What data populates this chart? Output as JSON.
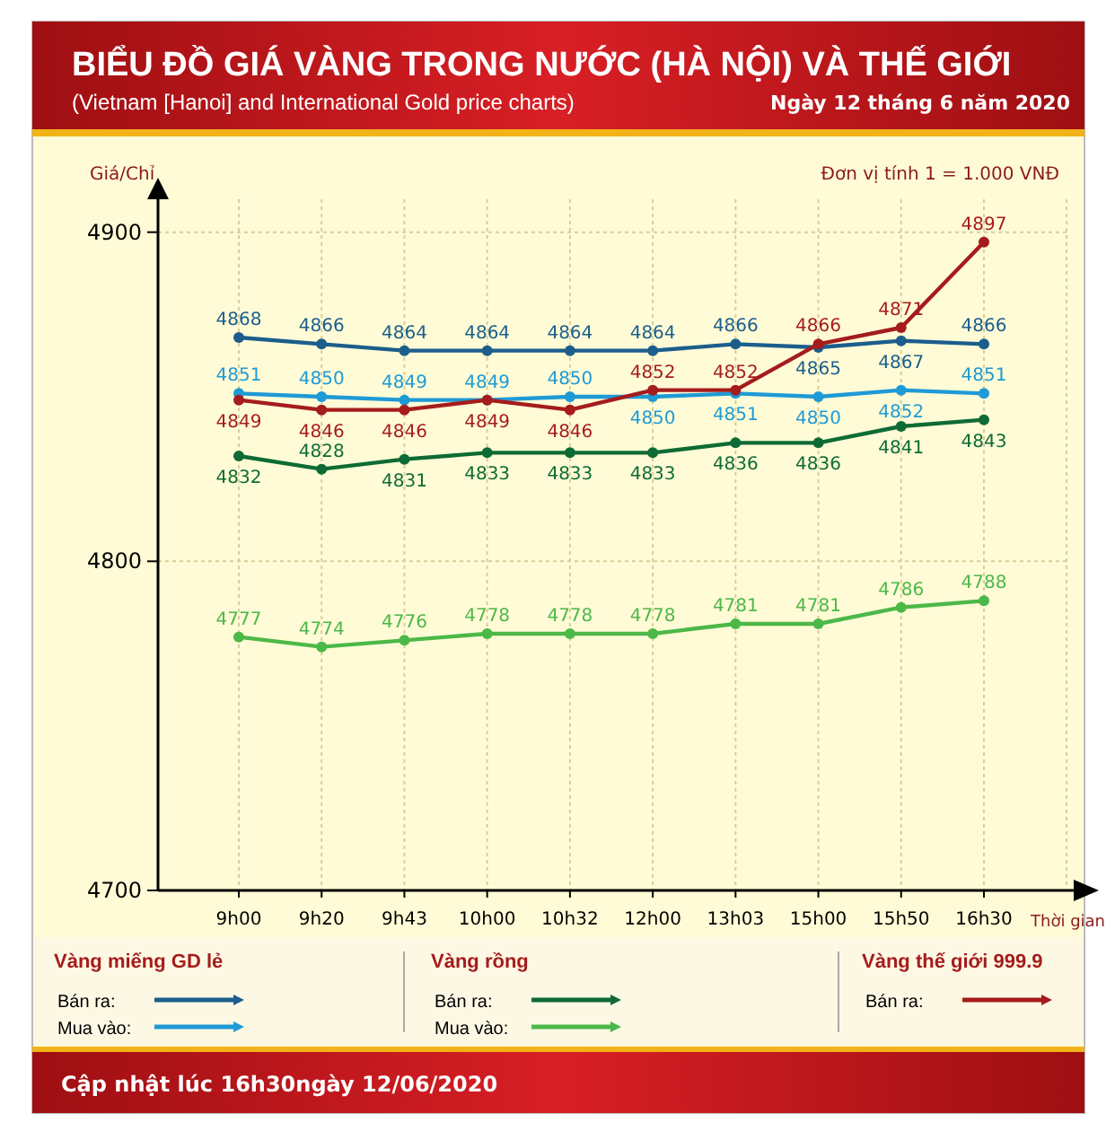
{
  "chart_data": {
    "type": "line",
    "title": "BIỂU ĐỒ GIÁ VÀNG TRONG NƯỚC (HÀ NỘI) VÀ THẾ GIỚI",
    "subtitle": "(Vietnam [Hanoi] and International Gold price charts)",
    "xlabel": "Thời gian",
    "ylabel": "Giá/Chỉ",
    "categories": [
      "9h00",
      "9h20",
      "9h43",
      "10h00",
      "10h32",
      "12h00",
      "13h03",
      "15h00",
      "15h50",
      "16h30"
    ],
    "series": [
      {
        "name": "Bán ra:",
        "color": "#1b5e8c",
        "values": [
          4868,
          4866,
          4864,
          4864,
          4864,
          4864,
          4866,
          4865,
          4867,
          4866
        ]
      },
      {
        "name": "Mua vào:",
        "color": "#1e9ad6",
        "values": [
          4851,
          4850,
          4849,
          4849,
          4850,
          4850,
          4851,
          4850,
          4852,
          4851
        ]
      },
      {
        "name": "Bán ra:",
        "color": "#0e6b35",
        "values": [
          4832,
          4828,
          4831,
          4833,
          4833,
          4833,
          4836,
          4836,
          4841,
          4843
        ]
      },
      {
        "name": "Mua vào:",
        "color": "#4cb848",
        "values": [
          4777,
          4774,
          4776,
          4778,
          4778,
          4778,
          4781,
          4781,
          4786,
          4788
        ]
      },
      {
        "name": "Bán ra:",
        "color": "#a51c1c",
        "values": [
          4849,
          4846,
          4846,
          4849,
          4846,
          4852,
          4852,
          4866,
          4871,
          4897
        ]
      }
    ],
    "ylim": [
      4700,
      4910
    ],
    "yticks": [
      4700,
      4800,
      4900
    ],
    "grid": true,
    "marker": "circle",
    "data_labels": true,
    "legend": "bottom",
    "annotations": [
      "Vàng miếng GD lẻ",
      "Vàng rồng",
      "Vàng thế giới 999.9",
      "Đơn vị tính 1 = 1.000 VNĐ",
      "Ngày 12 tháng 6 năm 2020",
      "Cập nhật lúc 16h30ngày 12/06/2020"
    ]
  }
}
